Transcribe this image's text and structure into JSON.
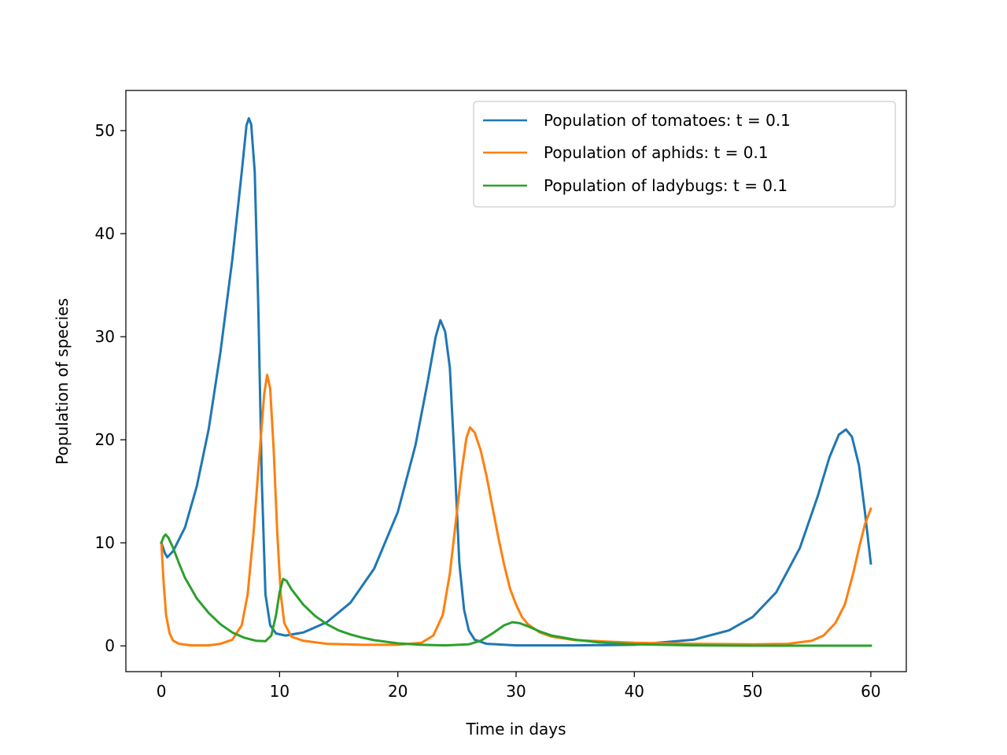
{
  "chart_data": {
    "type": "line",
    "title": "",
    "xlabel": "Time in days",
    "ylabel": "Population of species",
    "xlim": [
      -3,
      63
    ],
    "ylim": [
      -2.5,
      53.9
    ],
    "xticks": [
      0,
      10,
      20,
      30,
      40,
      50,
      60
    ],
    "yticks": [
      0,
      10,
      20,
      30,
      40,
      50
    ],
    "grid": false,
    "legend_position": "top-right",
    "series": [
      {
        "name": "Population of tomatoes: t = 0.1",
        "color": "#1f77b4",
        "points": [
          [
            0,
            10
          ],
          [
            0.3,
            9.0
          ],
          [
            0.5,
            8.6
          ],
          [
            1,
            9.2
          ],
          [
            2,
            11.5
          ],
          [
            3,
            15.5
          ],
          [
            4,
            21
          ],
          [
            5,
            28.5
          ],
          [
            6,
            37.5
          ],
          [
            6.8,
            46
          ],
          [
            7.2,
            50.5
          ],
          [
            7.4,
            51.2
          ],
          [
            7.6,
            50.6
          ],
          [
            7.9,
            46
          ],
          [
            8.2,
            33
          ],
          [
            8.5,
            16
          ],
          [
            8.8,
            5
          ],
          [
            9.2,
            2.0
          ],
          [
            9.7,
            1.2
          ],
          [
            10.5,
            1.0
          ],
          [
            12,
            1.3
          ],
          [
            14,
            2.3
          ],
          [
            16,
            4.2
          ],
          [
            18,
            7.5
          ],
          [
            20,
            13
          ],
          [
            21.5,
            19.5
          ],
          [
            22.5,
            25.5
          ],
          [
            23.2,
            30
          ],
          [
            23.6,
            31.6
          ],
          [
            24,
            30.5
          ],
          [
            24.4,
            27
          ],
          [
            24.8,
            18
          ],
          [
            25.2,
            8
          ],
          [
            25.6,
            3.5
          ],
          [
            26,
            1.5
          ],
          [
            26.5,
            0.6
          ],
          [
            27.5,
            0.2
          ],
          [
            30,
            0.05
          ],
          [
            35,
            0.05
          ],
          [
            40,
            0.1
          ],
          [
            45,
            0.6
          ],
          [
            48,
            1.5
          ],
          [
            50,
            2.8
          ],
          [
            52,
            5.2
          ],
          [
            54,
            9.5
          ],
          [
            55.5,
            14.5
          ],
          [
            56.5,
            18.3
          ],
          [
            57.3,
            20.5
          ],
          [
            57.9,
            21.0
          ],
          [
            58.4,
            20.3
          ],
          [
            59,
            17.5
          ],
          [
            59.5,
            13
          ],
          [
            60,
            8
          ]
        ]
      },
      {
        "name": "Population of aphids: t = 0.1",
        "color": "#ff7f0e",
        "points": [
          [
            0,
            10
          ],
          [
            0.2,
            6
          ],
          [
            0.4,
            3
          ],
          [
            0.7,
            1.2
          ],
          [
            1,
            0.5
          ],
          [
            1.5,
            0.2
          ],
          [
            2.5,
            0.05
          ],
          [
            4,
            0.05
          ],
          [
            5,
            0.2
          ],
          [
            6,
            0.6
          ],
          [
            6.8,
            2
          ],
          [
            7.3,
            5
          ],
          [
            7.8,
            11
          ],
          [
            8.3,
            18.5
          ],
          [
            8.7,
            24.5
          ],
          [
            8.95,
            26.3
          ],
          [
            9.2,
            25
          ],
          [
            9.5,
            19
          ],
          [
            9.8,
            11
          ],
          [
            10.1,
            5
          ],
          [
            10.4,
            2.2
          ],
          [
            11,
            0.9
          ],
          [
            12,
            0.5
          ],
          [
            14,
            0.2
          ],
          [
            17,
            0.1
          ],
          [
            20,
            0.1
          ],
          [
            22,
            0.3
          ],
          [
            23,
            1
          ],
          [
            23.8,
            3
          ],
          [
            24.4,
            7
          ],
          [
            24.9,
            12
          ],
          [
            25.4,
            17
          ],
          [
            25.8,
            20.2
          ],
          [
            26.1,
            21.2
          ],
          [
            26.5,
            20.7
          ],
          [
            27,
            19
          ],
          [
            27.5,
            16.5
          ],
          [
            28,
            13.5
          ],
          [
            28.5,
            10.5
          ],
          [
            29,
            7.8
          ],
          [
            29.5,
            5.5
          ],
          [
            30,
            4
          ],
          [
            30.5,
            2.8
          ],
          [
            31,
            2.1
          ],
          [
            32,
            1.3
          ],
          [
            33,
            0.9
          ],
          [
            35,
            0.55
          ],
          [
            38,
            0.4
          ],
          [
            40,
            0.3
          ],
          [
            45,
            0.2
          ],
          [
            50,
            0.15
          ],
          [
            53,
            0.2
          ],
          [
            55,
            0.5
          ],
          [
            56,
            1
          ],
          [
            57,
            2.2
          ],
          [
            57.8,
            4
          ],
          [
            58.5,
            7
          ],
          [
            59,
            9.5
          ],
          [
            59.5,
            11.8
          ],
          [
            60,
            13.3
          ]
        ]
      },
      {
        "name": "Population of ladybugs: t = 0.1",
        "color": "#2ca02c",
        "points": [
          [
            0,
            10
          ],
          [
            0.2,
            10.6
          ],
          [
            0.35,
            10.8
          ],
          [
            0.6,
            10.5
          ],
          [
            1,
            9.5
          ],
          [
            1.5,
            8
          ],
          [
            2,
            6.6
          ],
          [
            3,
            4.6
          ],
          [
            4,
            3.2
          ],
          [
            5,
            2.1
          ],
          [
            6,
            1.3
          ],
          [
            7,
            0.8
          ],
          [
            8,
            0.5
          ],
          [
            8.8,
            0.45
          ],
          [
            9.3,
            1
          ],
          [
            9.7,
            3
          ],
          [
            10,
            5.2
          ],
          [
            10.3,
            6.5
          ],
          [
            10.6,
            6.3
          ],
          [
            11,
            5.5
          ],
          [
            12,
            4
          ],
          [
            13,
            2.9
          ],
          [
            14,
            2.1
          ],
          [
            15,
            1.5
          ],
          [
            16,
            1.1
          ],
          [
            17,
            0.8
          ],
          [
            18,
            0.55
          ],
          [
            20,
            0.25
          ],
          [
            22,
            0.1
          ],
          [
            24,
            0.05
          ],
          [
            26,
            0.15
          ],
          [
            27,
            0.5
          ],
          [
            28,
            1.2
          ],
          [
            29,
            2
          ],
          [
            29.7,
            2.3
          ],
          [
            30.3,
            2.2
          ],
          [
            31,
            1.9
          ],
          [
            32,
            1.4
          ],
          [
            33,
            1.0
          ],
          [
            35,
            0.6
          ],
          [
            37,
            0.35
          ],
          [
            40,
            0.15
          ],
          [
            45,
            0.05
          ],
          [
            50,
            0.02
          ],
          [
            55,
            0.02
          ],
          [
            60,
            0.02
          ]
        ]
      }
    ]
  }
}
